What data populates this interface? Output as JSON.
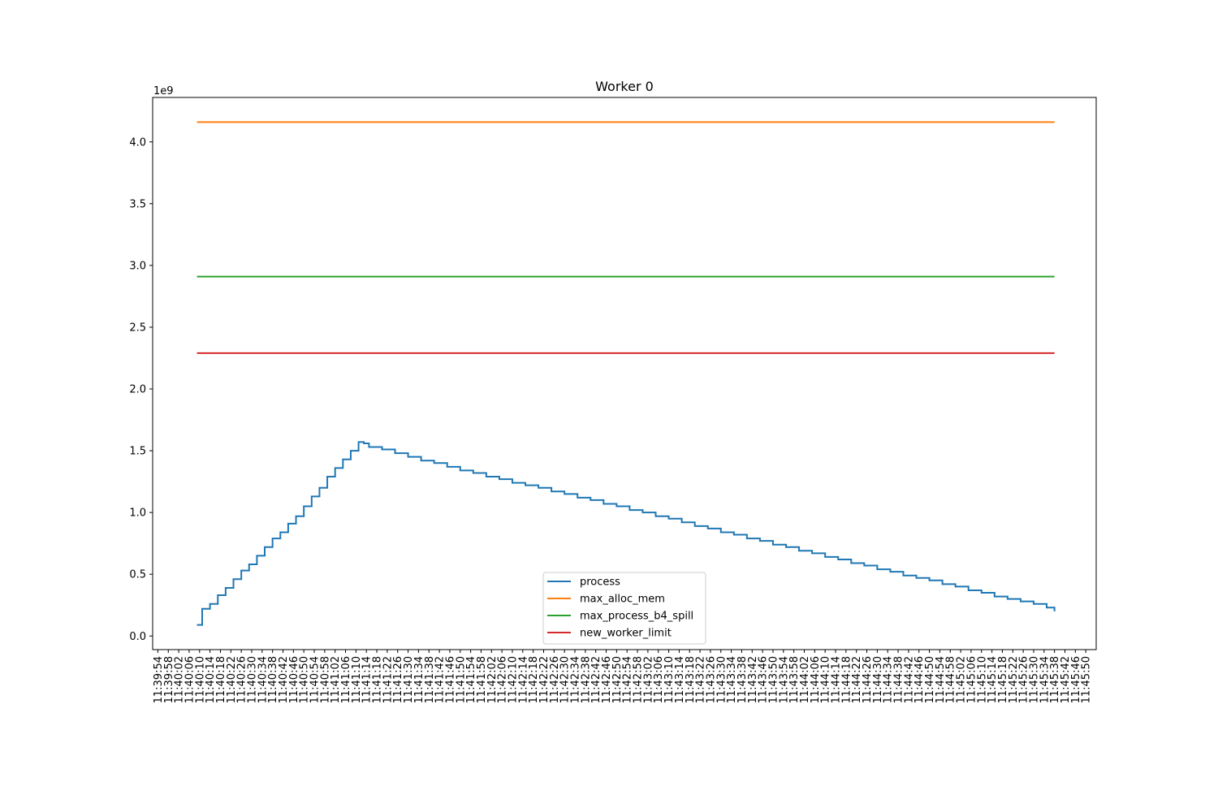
{
  "chart_data": {
    "type": "line",
    "title": "Worker 0",
    "xlabel": "",
    "ylabel": "",
    "y_offset_text": "1e9",
    "y_multiplier": 1000000000,
    "ylim": [
      -0.11,
      4.36
    ],
    "y_ticks": [
      0.0,
      0.5,
      1.0,
      1.5,
      2.0,
      2.5,
      3.0,
      3.5,
      4.0
    ],
    "y_tick_labels": [
      "0.0",
      "0.5",
      "1.0",
      "1.5",
      "2.0",
      "2.5",
      "3.0",
      "3.5",
      "4.0"
    ],
    "x_axis_type": "time",
    "xlim": [
      "11:39:52",
      "11:45:54"
    ],
    "x_tick_labels": [
      "11:39:54",
      "11:39:58",
      "11:40:02",
      "11:40:06",
      "11:40:10",
      "11:40:14",
      "11:40:18",
      "11:40:22",
      "11:40:26",
      "11:40:30",
      "11:40:34",
      "11:40:38",
      "11:40:42",
      "11:40:46",
      "11:40:50",
      "11:40:54",
      "11:40:58",
      "11:41:02",
      "11:41:06",
      "11:41:10",
      "11:41:14",
      "11:41:18",
      "11:41:22",
      "11:41:26",
      "11:41:30",
      "11:41:34",
      "11:41:38",
      "11:41:42",
      "11:41:46",
      "11:41:50",
      "11:41:54",
      "11:41:58",
      "11:42:02",
      "11:42:06",
      "11:42:10",
      "11:42:14",
      "11:42:18",
      "11:42:22",
      "11:42:26",
      "11:42:30",
      "11:42:34",
      "11:42:38",
      "11:42:42",
      "11:42:46",
      "11:42:50",
      "11:42:54",
      "11:42:58",
      "11:43:02",
      "11:43:06",
      "11:43:10",
      "11:43:14",
      "11:43:18",
      "11:43:22",
      "11:43:26",
      "11:43:30",
      "11:43:34",
      "11:43:38",
      "11:43:42",
      "11:43:46",
      "11:43:50",
      "11:43:54",
      "11:43:58",
      "11:44:02",
      "11:44:06",
      "11:44:10",
      "11:44:14",
      "11:44:18",
      "11:44:22",
      "11:44:26",
      "11:44:30",
      "11:44:34",
      "11:44:38",
      "11:44:42",
      "11:44:46",
      "11:44:50",
      "11:44:54",
      "11:44:58",
      "11:45:02",
      "11:45:06",
      "11:45:10",
      "11:45:14",
      "11:45:18",
      "11:45:22",
      "11:45:26",
      "11:45:30",
      "11:45:34",
      "11:45:38",
      "11:45:42",
      "11:45:46",
      "11:45:50"
    ],
    "grid": false,
    "legend_position": "bottom-center",
    "series": [
      {
        "name": "process",
        "color": "#1f77b4",
        "drawstyle": "steps",
        "points": [
          [
            "11:40:09",
            0.09
          ],
          [
            "11:40:11",
            0.09
          ],
          [
            "11:40:11",
            0.22
          ],
          [
            "11:40:14",
            0.26
          ],
          [
            "11:40:17",
            0.33
          ],
          [
            "11:40:20",
            0.39
          ],
          [
            "11:40:23",
            0.46
          ],
          [
            "11:40:26",
            0.53
          ],
          [
            "11:40:29",
            0.58
          ],
          [
            "11:40:32",
            0.65
          ],
          [
            "11:40:35",
            0.72
          ],
          [
            "11:40:38",
            0.79
          ],
          [
            "11:40:41",
            0.84
          ],
          [
            "11:40:44",
            0.91
          ],
          [
            "11:40:47",
            0.97
          ],
          [
            "11:40:50",
            1.05
          ],
          [
            "11:40:53",
            1.13
          ],
          [
            "11:40:56",
            1.2
          ],
          [
            "11:40:59",
            1.29
          ],
          [
            "11:41:02",
            1.36
          ],
          [
            "11:41:05",
            1.43
          ],
          [
            "11:41:08",
            1.5
          ],
          [
            "11:41:11",
            1.57
          ],
          [
            "11:41:13",
            1.56
          ],
          [
            "11:41:15",
            1.53
          ],
          [
            "11:41:20",
            1.51
          ],
          [
            "11:41:25",
            1.48
          ],
          [
            "11:41:30",
            1.45
          ],
          [
            "11:41:35",
            1.42
          ],
          [
            "11:41:40",
            1.4
          ],
          [
            "11:41:45",
            1.37
          ],
          [
            "11:41:50",
            1.34
          ],
          [
            "11:41:55",
            1.32
          ],
          [
            "11:42:00",
            1.29
          ],
          [
            "11:42:05",
            1.27
          ],
          [
            "11:42:10",
            1.24
          ],
          [
            "11:42:15",
            1.22
          ],
          [
            "11:42:20",
            1.2
          ],
          [
            "11:42:25",
            1.17
          ],
          [
            "11:42:30",
            1.15
          ],
          [
            "11:42:35",
            1.12
          ],
          [
            "11:42:40",
            1.1
          ],
          [
            "11:42:45",
            1.07
          ],
          [
            "11:42:50",
            1.05
          ],
          [
            "11:42:55",
            1.02
          ],
          [
            "11:43:00",
            1.0
          ],
          [
            "11:43:05",
            0.97
          ],
          [
            "11:43:10",
            0.95
          ],
          [
            "11:43:15",
            0.92
          ],
          [
            "11:43:20",
            0.89
          ],
          [
            "11:43:25",
            0.87
          ],
          [
            "11:43:30",
            0.84
          ],
          [
            "11:43:35",
            0.82
          ],
          [
            "11:43:40",
            0.79
          ],
          [
            "11:43:45",
            0.77
          ],
          [
            "11:43:50",
            0.74
          ],
          [
            "11:43:55",
            0.72
          ],
          [
            "11:44:00",
            0.69
          ],
          [
            "11:44:05",
            0.67
          ],
          [
            "11:44:10",
            0.64
          ],
          [
            "11:44:15",
            0.62
          ],
          [
            "11:44:20",
            0.59
          ],
          [
            "11:44:25",
            0.57
          ],
          [
            "11:44:30",
            0.54
          ],
          [
            "11:44:35",
            0.52
          ],
          [
            "11:44:40",
            0.49
          ],
          [
            "11:44:45",
            0.47
          ],
          [
            "11:44:50",
            0.45
          ],
          [
            "11:44:55",
            0.42
          ],
          [
            "11:45:00",
            0.4
          ],
          [
            "11:45:05",
            0.37
          ],
          [
            "11:45:10",
            0.35
          ],
          [
            "11:45:15",
            0.32
          ],
          [
            "11:45:20",
            0.3
          ],
          [
            "11:45:25",
            0.28
          ],
          [
            "11:45:30",
            0.26
          ],
          [
            "11:45:35",
            0.23
          ],
          [
            "11:45:38",
            0.2
          ]
        ]
      },
      {
        "name": "max_alloc_mem",
        "color": "#ff7f0e",
        "drawstyle": "line",
        "points": [
          [
            "11:40:09",
            4.16
          ],
          [
            "11:45:38",
            4.16
          ]
        ]
      },
      {
        "name": "max_process_b4_spill",
        "color": "#2ca02c",
        "drawstyle": "line",
        "points": [
          [
            "11:40:09",
            2.91
          ],
          [
            "11:45:38",
            2.91
          ]
        ]
      },
      {
        "name": "new_worker_limit",
        "color": "#d62728",
        "drawstyle": "line",
        "points": [
          [
            "11:40:09",
            2.29
          ],
          [
            "11:45:38",
            2.29
          ]
        ]
      }
    ]
  }
}
